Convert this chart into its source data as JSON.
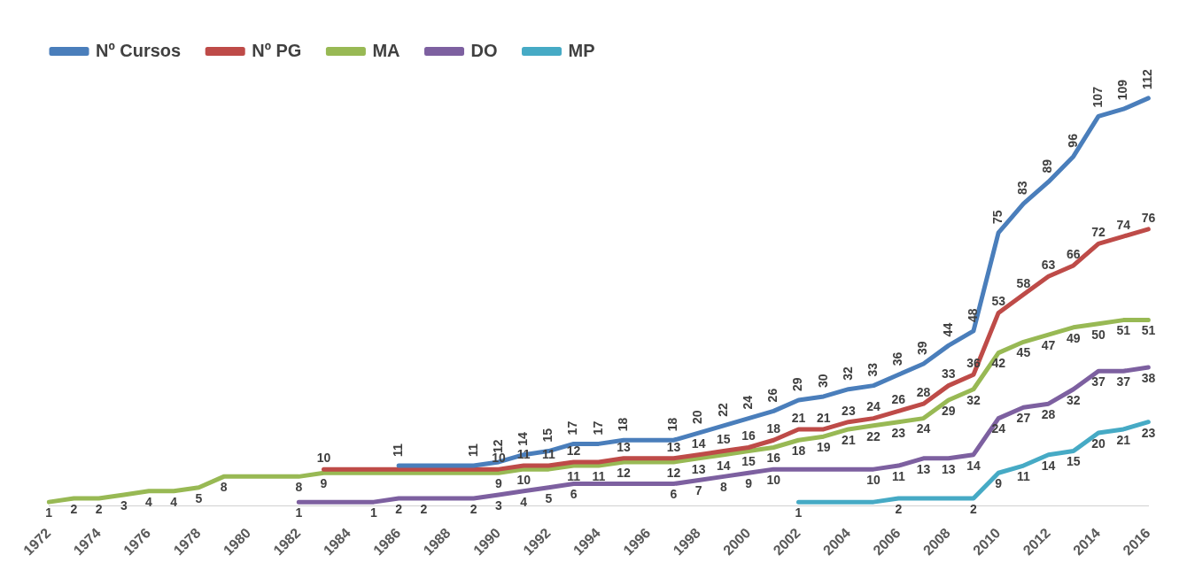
{
  "chart_data": {
    "type": "line",
    "marker": "none",
    "legend": "top left",
    "tick_labels": "x",
    "categories": [
      "1972",
      null,
      "1974",
      null,
      "1976",
      null,
      "1978",
      null,
      "1980",
      null,
      "1982",
      null,
      "1984",
      null,
      "1986",
      null,
      "1988",
      null,
      "1990",
      null,
      "1992",
      null,
      "1994",
      null,
      "1996",
      null,
      "1998",
      null,
      "2000",
      null,
      "2002",
      null,
      "2004",
      null,
      "2006",
      null,
      "2008",
      null,
      "2010",
      null,
      "2012",
      null,
      "2014",
      null,
      "2016"
    ],
    "series": [
      {
        "name": "Nº Cursos",
        "color": "#4a7ebb",
        "values": [
          null,
          null,
          null,
          null,
          null,
          null,
          null,
          null,
          null,
          null,
          null,
          null,
          null,
          null,
          11,
          11,
          11,
          11,
          12,
          14,
          15,
          17,
          17,
          18,
          18,
          18,
          20,
          22,
          24,
          26,
          29,
          30,
          32,
          33,
          36,
          39,
          44,
          48,
          75,
          83,
          89,
          96,
          107,
          109,
          112
        ],
        "value_labels": [
          null,
          null,
          null,
          null,
          null,
          null,
          null,
          null,
          null,
          null,
          null,
          null,
          null,
          null,
          "11",
          null,
          null,
          "11",
          "12",
          "14",
          "15",
          "17",
          "17",
          "18",
          null,
          "18",
          "20",
          "22",
          "24",
          "26",
          "29",
          "30",
          "32",
          "33",
          "36",
          "39",
          "44",
          "48",
          "75",
          "83",
          "89",
          "96",
          "107",
          "109",
          "112"
        ]
      },
      {
        "name": "Nº PG",
        "color": "#be4b48",
        "values": [
          null,
          null,
          null,
          null,
          null,
          null,
          null,
          null,
          null,
          null,
          null,
          10,
          10,
          10,
          10,
          10,
          10,
          10,
          10,
          11,
          11,
          12,
          12,
          13,
          13,
          13,
          14,
          15,
          16,
          18,
          21,
          21,
          23,
          24,
          26,
          28,
          33,
          36,
          53,
          58,
          63,
          66,
          72,
          74,
          76
        ],
        "value_labels": [
          null,
          null,
          null,
          null,
          null,
          null,
          null,
          null,
          null,
          null,
          null,
          "10",
          null,
          null,
          null,
          null,
          null,
          null,
          "10",
          "11",
          "11",
          "12",
          null,
          "13",
          null,
          "13",
          "14",
          "15",
          "16",
          "18",
          "21",
          "21",
          "23",
          "24",
          "26",
          "28",
          "33",
          "36",
          "53",
          "58",
          "63",
          "66",
          "72",
          "74",
          "76"
        ]
      },
      {
        "name": "MA",
        "color": "#98b954",
        "values": [
          1,
          2,
          2,
          3,
          4,
          4,
          5,
          8,
          8,
          8,
          8,
          9,
          9,
          9,
          9,
          9,
          9,
          9,
          9,
          10,
          10,
          11,
          11,
          12,
          12,
          12,
          13,
          14,
          15,
          16,
          18,
          19,
          21,
          22,
          23,
          24,
          29,
          32,
          42,
          45,
          47,
          49,
          50,
          51,
          51
        ],
        "value_labels": [
          "1",
          "2",
          "2",
          "3",
          "4",
          "4",
          "5",
          "8",
          null,
          null,
          "8",
          "9",
          null,
          null,
          null,
          null,
          null,
          null,
          "9",
          "10",
          null,
          "11",
          "11",
          "12",
          null,
          "12",
          "13",
          "14",
          "15",
          "16",
          "18",
          "19",
          "21",
          "22",
          "23",
          "24",
          "29",
          "32",
          "42",
          "45",
          "47",
          "49",
          "50",
          "51",
          "51"
        ]
      },
      {
        "name": "DO",
        "color": "#7d60a0",
        "values": [
          null,
          null,
          null,
          null,
          null,
          null,
          null,
          null,
          null,
          null,
          1,
          1,
          1,
          1,
          2,
          2,
          2,
          2,
          3,
          4,
          5,
          6,
          6,
          6,
          6,
          6,
          7,
          8,
          9,
          10,
          10,
          10,
          10,
          10,
          11,
          13,
          13,
          14,
          24,
          27,
          28,
          32,
          37,
          37,
          38
        ],
        "value_labels": [
          null,
          null,
          null,
          null,
          null,
          null,
          null,
          null,
          null,
          null,
          "1",
          null,
          null,
          "1",
          "2",
          "2",
          null,
          "2",
          "3",
          "4",
          "5",
          "6",
          null,
          null,
          null,
          "6",
          "7",
          "8",
          "9",
          "10",
          null,
          null,
          null,
          "10",
          "11",
          "13",
          "13",
          "14",
          "24",
          "27",
          "28",
          "32",
          "37",
          "37",
          "38"
        ]
      },
      {
        "name": "MP",
        "color": "#46aac5",
        "values": [
          null,
          null,
          null,
          null,
          null,
          null,
          null,
          null,
          null,
          null,
          null,
          null,
          null,
          null,
          null,
          null,
          null,
          null,
          null,
          null,
          null,
          null,
          null,
          null,
          null,
          null,
          null,
          null,
          null,
          null,
          1,
          1,
          1,
          1,
          2,
          2,
          2,
          2,
          9,
          11,
          14,
          15,
          20,
          21,
          23
        ],
        "value_labels": [
          null,
          null,
          null,
          null,
          null,
          null,
          null,
          null,
          null,
          null,
          null,
          null,
          null,
          null,
          null,
          null,
          null,
          null,
          null,
          null,
          null,
          null,
          null,
          null,
          null,
          null,
          null,
          null,
          null,
          null,
          "1",
          null,
          null,
          null,
          "2",
          null,
          null,
          "2",
          "9",
          "11",
          "14",
          "15",
          "20",
          "21",
          "23"
        ]
      }
    ]
  }
}
